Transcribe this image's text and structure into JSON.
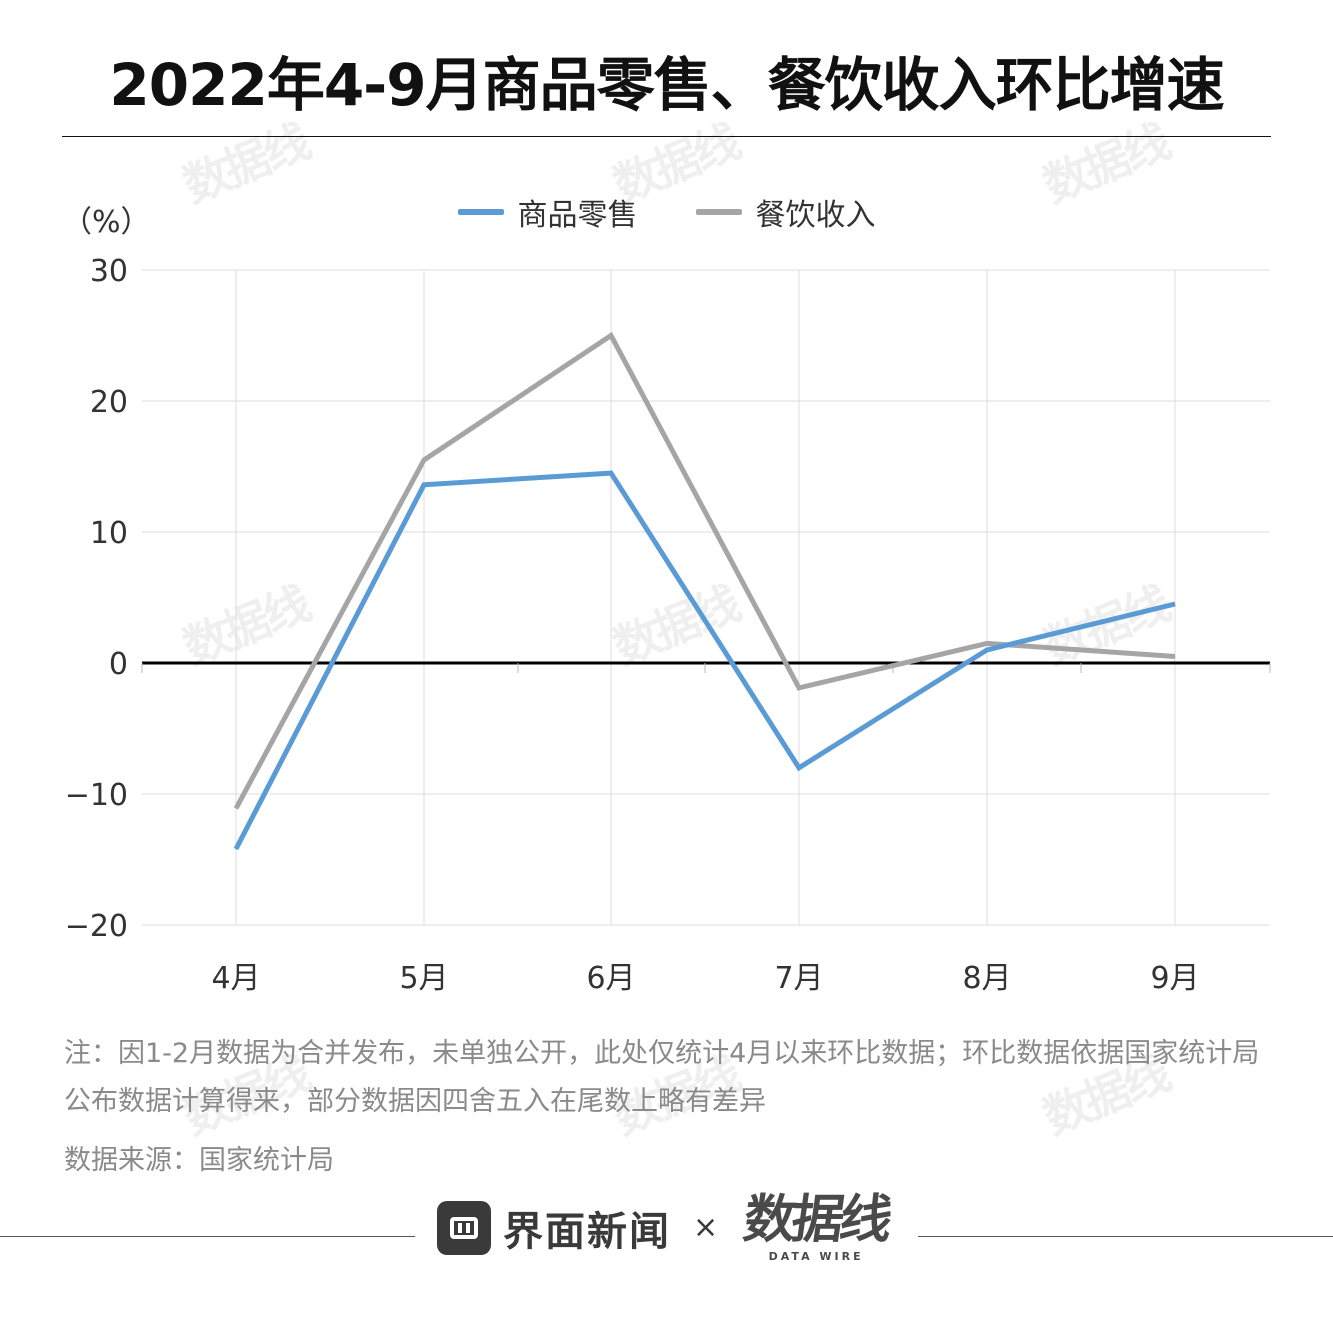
{
  "title": "2022年4-9月商品零售、餐饮收入环比增速",
  "legend": [
    {
      "label": "商品零售",
      "color": "#5b9bd5"
    },
    {
      "label": "餐饮收入",
      "color": "#a5a5a5"
    }
  ],
  "chart_data": {
    "type": "line",
    "title": "2022年4-9月商品零售、餐饮收入环比增速",
    "ylabel": "（%）",
    "xlabel": "",
    "categories": [
      "4月",
      "5月",
      "6月",
      "7月",
      "8月",
      "9月"
    ],
    "series": [
      {
        "name": "商品零售",
        "color": "#5b9bd5",
        "values": [
          -14.2,
          13.6,
          14.5,
          -8.0,
          1.0,
          4.5
        ]
      },
      {
        "name": "餐饮收入",
        "color": "#a5a5a5",
        "values": [
          -11.1,
          15.5,
          25.0,
          -1.9,
          1.5,
          0.5
        ]
      }
    ],
    "ylim": [
      -20,
      30
    ],
    "yticks": [
      30,
      20,
      10,
      0,
      -10,
      -20
    ],
    "grid": true,
    "legend_position": "top-center"
  },
  "note": "注：因1-2月数据为合并发布，未单独公开，此处仅统计4月以来环比数据；环比数据依据国家统计局公布数据计算得来，部分数据因四舍五入在尾数上略有差异",
  "source": "数据来源：国家统计局",
  "footer": {
    "brand": "界面新闻",
    "times": "×",
    "datawire_cn": "数据线",
    "datawire_en": "DATA WIRE"
  },
  "watermark": "数据线"
}
